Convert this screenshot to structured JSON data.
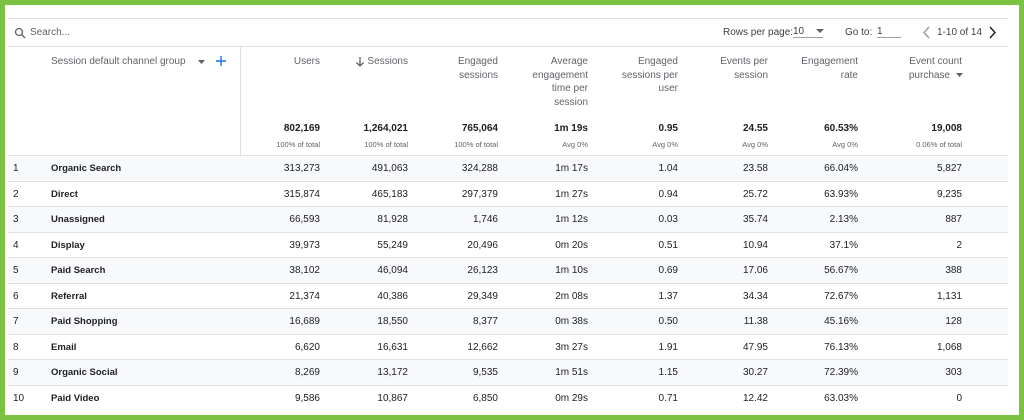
{
  "toolbar": {
    "search_placeholder": "Search...",
    "rows_per_page_label": "Rows per page:",
    "rows_per_page": "10",
    "goto_label": "Go to:",
    "goto_value": "1",
    "range": "1-10 of 14"
  },
  "table": {
    "dimension_header": "Session default channel group",
    "columns": [
      {
        "label": "Users",
        "total": "802,169",
        "total_note": "100% of total"
      },
      {
        "label": "Sessions",
        "total": "1,264,021",
        "total_note": "100% of total"
      },
      {
        "label": "Engaged sessions",
        "total": "765,064",
        "total_note": "100% of total"
      },
      {
        "label": "Average engagement time per session",
        "total": "1m 19s",
        "total_note": "Avg 0%"
      },
      {
        "label": "Engaged sessions per user",
        "total": "0.95",
        "total_note": "Avg 0%"
      },
      {
        "label": "Events per session",
        "total": "24.55",
        "total_note": "Avg 0%"
      },
      {
        "label": "Engagement rate",
        "total": "60.53%",
        "total_note": "Avg 0%"
      },
      {
        "label": "Event count",
        "sublabel": "purchase",
        "total": "19,008",
        "total_note": "0.06% of total"
      }
    ],
    "rows": [
      [
        "1",
        "Organic Search",
        "313,273",
        "491,063",
        "324,288",
        "1m 17s",
        "1.04",
        "23.58",
        "66.04%",
        "5,827"
      ],
      [
        "2",
        "Direct",
        "315,874",
        "465,183",
        "297,379",
        "1m 27s",
        "0.94",
        "25.72",
        "63.93%",
        "9,235"
      ],
      [
        "3",
        "Unassigned",
        "66,593",
        "81,928",
        "1,746",
        "1m 12s",
        "0.03",
        "35.74",
        "2.13%",
        "887"
      ],
      [
        "4",
        "Display",
        "39,973",
        "55,249",
        "20,496",
        "0m 20s",
        "0.51",
        "10.94",
        "37.1%",
        "2"
      ],
      [
        "5",
        "Paid Search",
        "38,102",
        "46,094",
        "26,123",
        "1m 10s",
        "0.69",
        "17.06",
        "56.67%",
        "388"
      ],
      [
        "6",
        "Referral",
        "21,374",
        "40,386",
        "29,349",
        "2m 08s",
        "1.37",
        "34.34",
        "72.67%",
        "1,131"
      ],
      [
        "7",
        "Paid Shopping",
        "16,689",
        "18,550",
        "8,377",
        "0m 38s",
        "0.50",
        "11.38",
        "45.16%",
        "128"
      ],
      [
        "8",
        "Email",
        "6,620",
        "16,631",
        "12,662",
        "3m 27s",
        "1.91",
        "47.95",
        "76.13%",
        "1,068"
      ],
      [
        "9",
        "Organic Social",
        "8,269",
        "13,172",
        "9,535",
        "1m 51s",
        "1.15",
        "30.27",
        "72.39%",
        "303"
      ],
      [
        "10",
        "Paid Video",
        "9,586",
        "10,867",
        "6,850",
        "0m 29s",
        "0.71",
        "12.42",
        "63.03%",
        "0"
      ]
    ]
  }
}
